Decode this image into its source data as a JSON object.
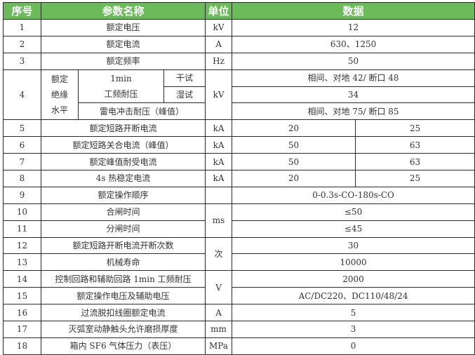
{
  "header": {
    "no": "序号",
    "name": "参数名称",
    "unit": "单位",
    "data": "数据"
  },
  "colors": {
    "header_bg": "#6cbb5a",
    "header_text": "#ffffff",
    "border": "#2a2a2a"
  },
  "rows": {
    "r1": {
      "no": "1",
      "name": "额定电压",
      "unit": "kV",
      "data": "12"
    },
    "r2": {
      "no": "2",
      "name": "额定电流",
      "unit": "A",
      "data": "630、1250"
    },
    "r3": {
      "no": "3",
      "name": "额定频率",
      "unit": "Hz",
      "data": "50"
    },
    "r4": {
      "no": "4",
      "group_line1": "额定",
      "group_line2": "绝缘",
      "group_line3": "水平",
      "pf_line1": "1min",
      "pf_line2": "工频耐压",
      "dry": "干试",
      "wet": "湿试",
      "impulse": "雷电冲击耐压（峰值）",
      "unit": "kV",
      "dry_data": "相间、对地 42/ 断口 48",
      "wet_data": "34",
      "impulse_data": "相间、对地 75/ 断口 85"
    },
    "r5": {
      "no": "5",
      "name": "额定短路开断电流",
      "unit": "kA",
      "data_a": "20",
      "data_b": "25"
    },
    "r6": {
      "no": "6",
      "name": "额定短路关合电流（峰值）",
      "unit": "kA",
      "data_a": "50",
      "data_b": "63"
    },
    "r7": {
      "no": "7",
      "name": "额定峰值耐受电流",
      "unit": "kA",
      "data_a": "50",
      "data_b": "63"
    },
    "r8": {
      "no": "8",
      "name": "4s 热稳定电流",
      "unit": "kA",
      "data_a": "20",
      "data_b": "25"
    },
    "r9": {
      "no": "9",
      "name": "额定操作顺序",
      "unit": "",
      "data": "0-0.3s-CO-180s-CO"
    },
    "r10": {
      "no": "10",
      "name": "合闸时间",
      "unit": "ms",
      "data": "≤50"
    },
    "r11": {
      "no": "11",
      "name": "分闸时间",
      "data": "≤45"
    },
    "r12": {
      "no": "12",
      "name": "额定短路开断电流开断次数",
      "unit": "次",
      "data": "30"
    },
    "r13": {
      "no": "13",
      "name": "机械寿命",
      "data": "10000"
    },
    "r14": {
      "no": "14",
      "name": "控制回路和辅助回路 1min 工频耐压",
      "unit": "V",
      "data": "2000"
    },
    "r15": {
      "no": "15",
      "name": "额定操作电压及辅助电压",
      "data": "AC/DC220、DC110/48/24"
    },
    "r16": {
      "no": "16",
      "name": "过流脱扣线圈额定电流",
      "unit": "A",
      "data": "5"
    },
    "r17": {
      "no": "17",
      "name": "灭弧室动静触头允许磨损厚度",
      "unit": "mm",
      "data": "3"
    },
    "r18": {
      "no": "18",
      "name": "箱内 SF6 气体压力（表压）",
      "unit": "MPa",
      "data": "0"
    }
  }
}
